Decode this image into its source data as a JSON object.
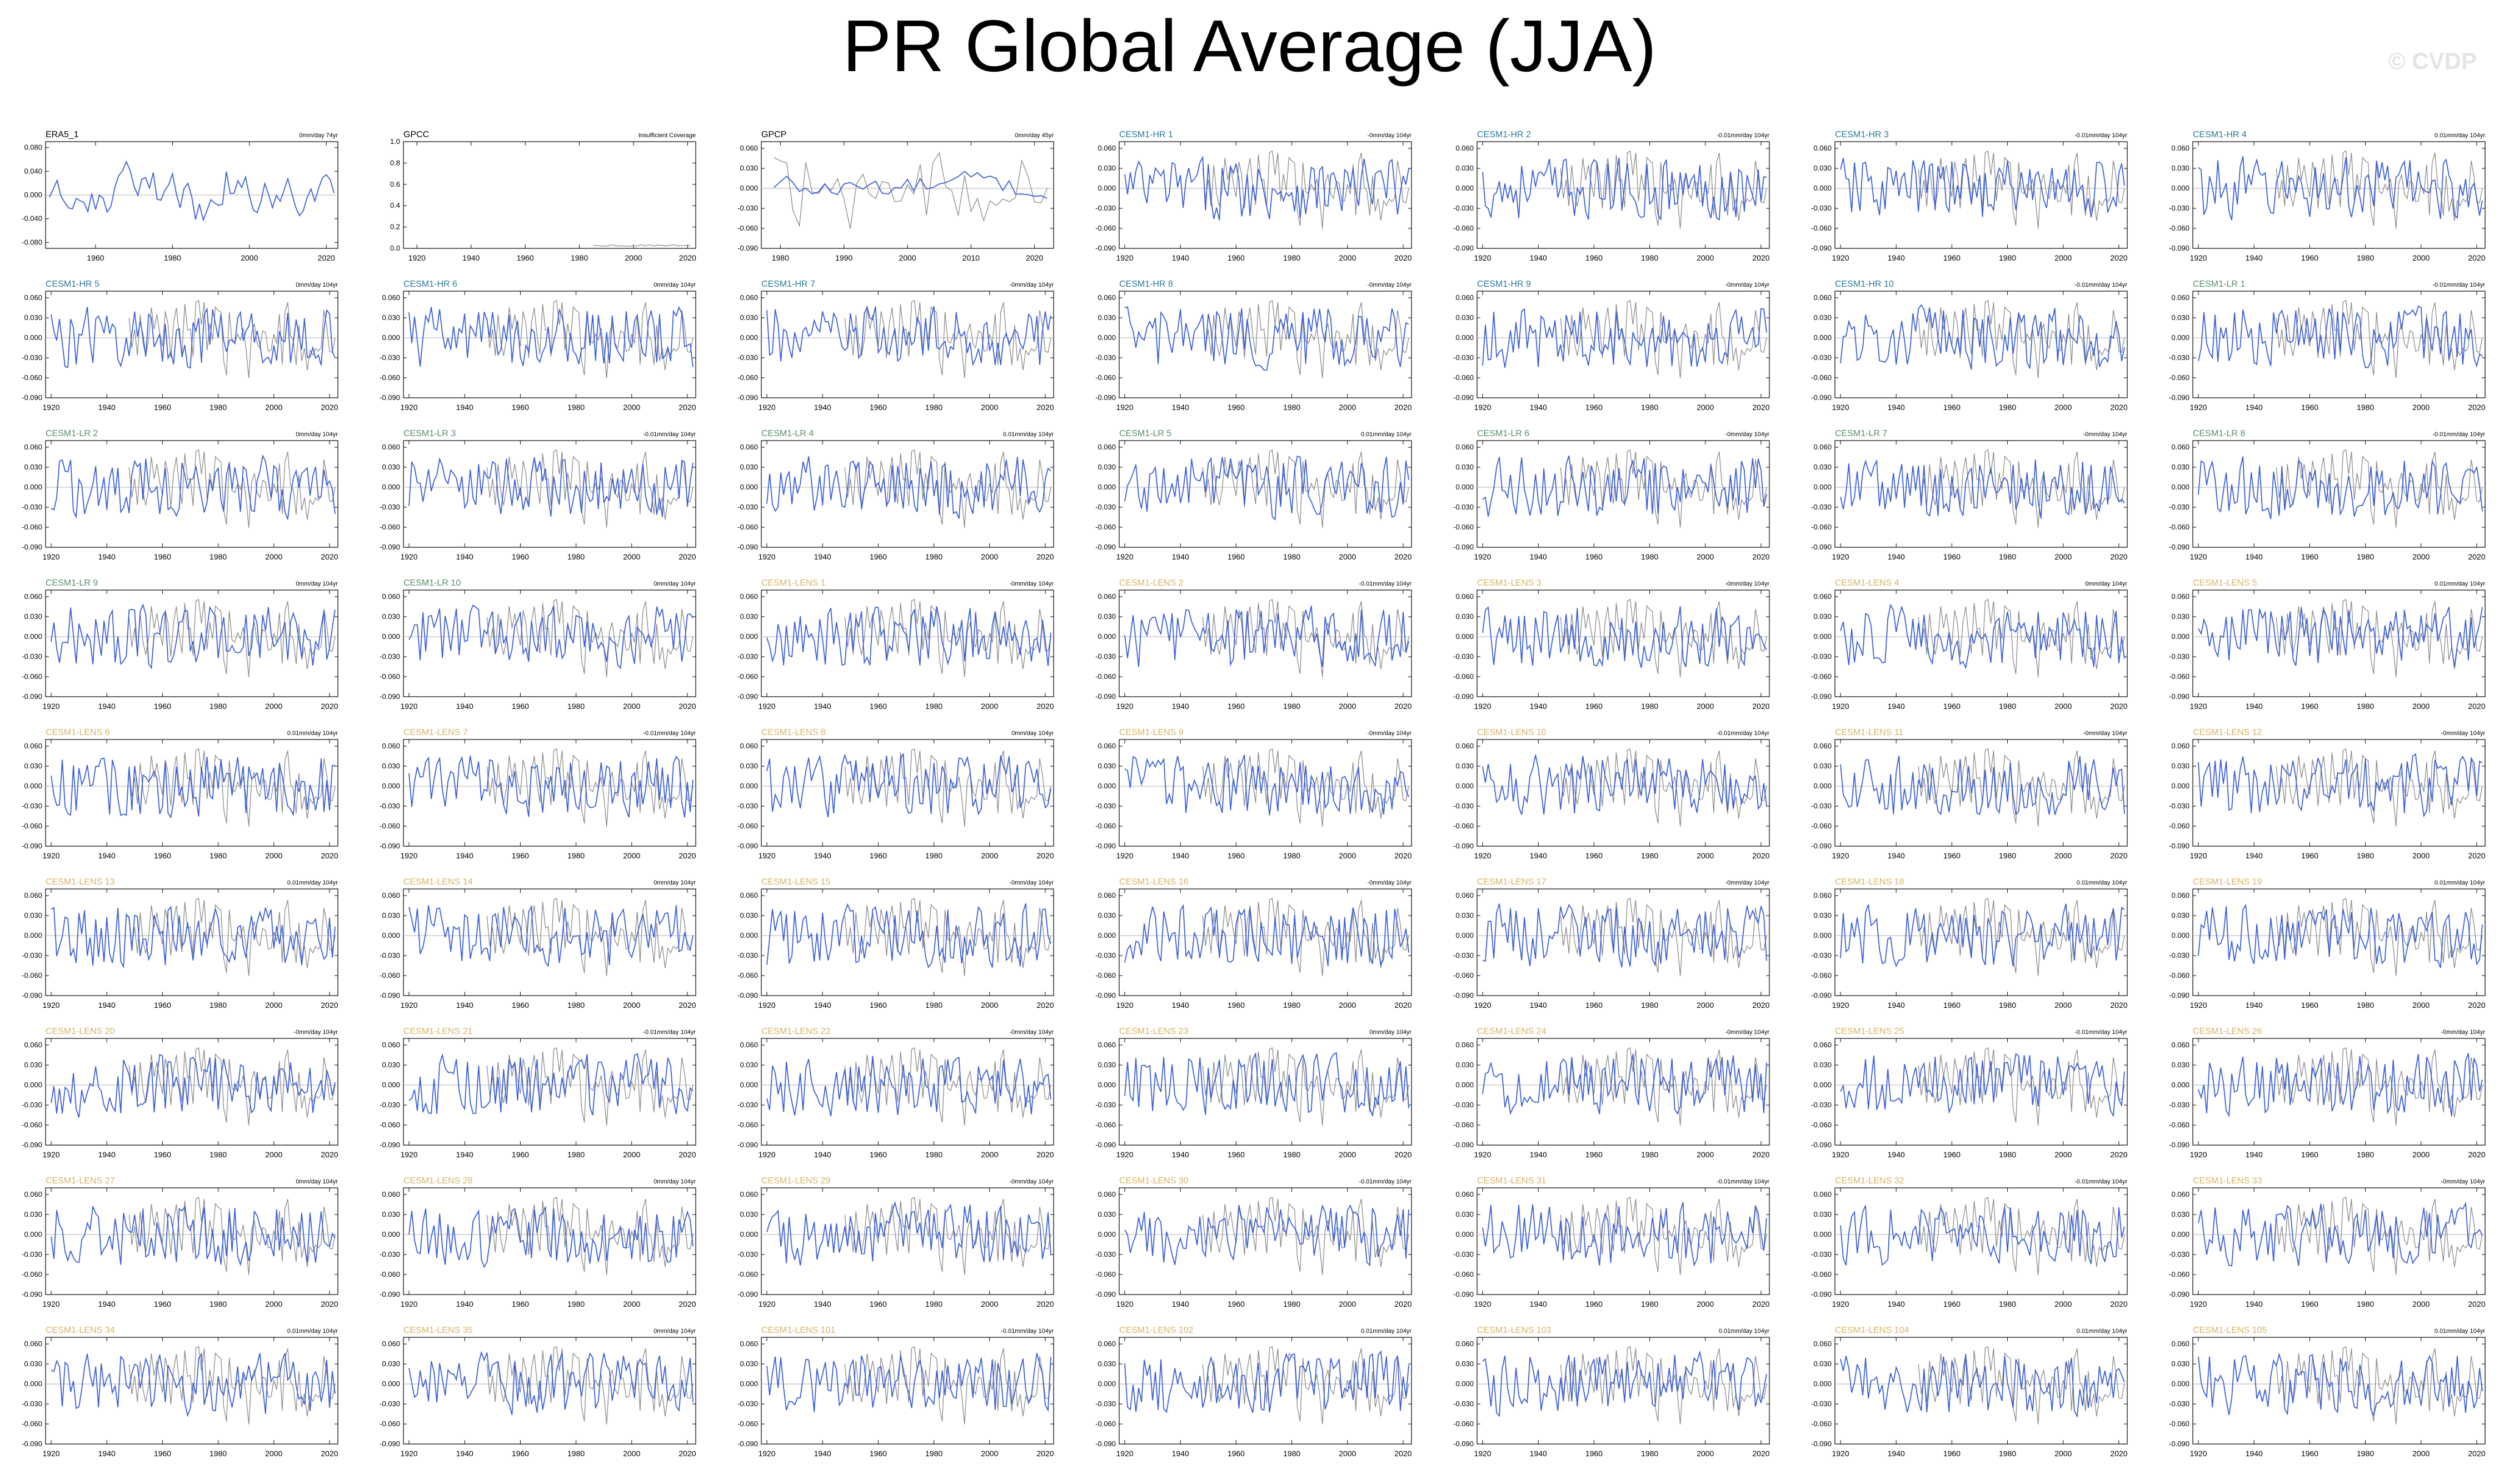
{
  "title": "PR Global Average (JJA)",
  "watermark": "© CVDP",
  "colors": {
    "model_line": "#3a5fd8",
    "obs_line": "#8a8a8a",
    "zero_line": "#b0b0b0",
    "title_obs": "#000000",
    "title_hr": "#2b7a9a",
    "title_lr": "#5a8f6a",
    "title_lens": "#d7b46a"
  },
  "chart_data": [
    {
      "type": "line",
      "title": "ERA5_1",
      "trend": "0mm/day 74yr",
      "group": "obs",
      "xlim": [
        1947,
        2023
      ],
      "ylim": [
        -0.09,
        0.09
      ],
      "xticks": [
        1960,
        1980,
        2000,
        2020
      ],
      "yticks": [
        -0.08,
        -0.04,
        0,
        0.04,
        0.08
      ],
      "ytick_labels": [
        "-0.080",
        "-0.040",
        "0.000",
        "0.040",
        "0.080"
      ]
    },
    {
      "type": "line",
      "title": "GPCC",
      "trend": "Insufficient Coverage",
      "group": "obs",
      "xlim": [
        1915,
        2023
      ],
      "ylim": [
        0,
        1
      ],
      "xticks": [
        1920,
        1940,
        1960,
        1980,
        2000,
        2020
      ],
      "yticks": [
        0,
        0.2,
        0.4,
        0.6,
        0.8,
        1.0
      ],
      "ytick_labels": [
        "0.0",
        "0.2",
        "0.4",
        "0.6",
        "0.8",
        "1.0"
      ]
    },
    {
      "type": "line",
      "title": "GPCP",
      "trend": "0mm/day 45yr",
      "group": "obs",
      "xlim": [
        1977,
        2023
      ],
      "ylim": [
        -0.09,
        0.07
      ],
      "xticks": [
        1980,
        1990,
        2000,
        2010,
        2020
      ],
      "yticks": [
        -0.09,
        -0.06,
        -0.03,
        0,
        0.03,
        0.06
      ],
      "ytick_labels": [
        "-0.090",
        "-0.060",
        "-0.030",
        "0.000",
        "0.030",
        "0.060"
      ]
    },
    {
      "title": "CESM1-HR 1",
      "trend": "-0mm/day 104yr",
      "group": "hr"
    },
    {
      "title": "CESM1-HR 2",
      "trend": "-0.01mm/day 104yr",
      "group": "hr"
    },
    {
      "title": "CESM1-HR 3",
      "trend": "-0.01mm/day 104yr",
      "group": "hr"
    },
    {
      "title": "CESM1-HR 4",
      "trend": "0.01mm/day 104yr",
      "group": "hr"
    },
    {
      "title": "CESM1-HR 5",
      "trend": "0mm/day 104yr",
      "group": "hr"
    },
    {
      "title": "CESM1-HR 6",
      "trend": "0mm/day 104yr",
      "group": "hr"
    },
    {
      "title": "CESM1-HR 7",
      "trend": "-0mm/day 104yr",
      "group": "hr"
    },
    {
      "title": "CESM1-HR 8",
      "trend": "-0mm/day 104yr",
      "group": "hr"
    },
    {
      "title": "CESM1-HR 9",
      "trend": "-0mm/day 104yr",
      "group": "hr"
    },
    {
      "title": "CESM1-HR 10",
      "trend": "-0.01mm/day 104yr",
      "group": "hr"
    },
    {
      "title": "CESM1-LR 1",
      "trend": "-0.01mm/day 104yr",
      "group": "lr"
    },
    {
      "title": "CESM1-LR 2",
      "trend": "0mm/day 104yr",
      "group": "lr"
    },
    {
      "title": "CESM1-LR 3",
      "trend": "-0.01mm/day 104yr",
      "group": "lr"
    },
    {
      "title": "CESM1-LR 4",
      "trend": "0.01mm/day 104yr",
      "group": "lr"
    },
    {
      "title": "CESM1-LR 5",
      "trend": "0.01mm/day 104yr",
      "group": "lr"
    },
    {
      "title": "CESM1-LR 6",
      "trend": "-0mm/day 104yr",
      "group": "lr"
    },
    {
      "title": "CESM1-LR 7",
      "trend": "-0mm/day 104yr",
      "group": "lr"
    },
    {
      "title": "CESM1-LR 8",
      "trend": "-0.01mm/day 104yr",
      "group": "lr"
    },
    {
      "title": "CESM1-LR 9",
      "trend": "0mm/day 104yr",
      "group": "lr"
    },
    {
      "title": "CESM1-LR 10",
      "trend": "0mm/day 104yr",
      "group": "lr"
    },
    {
      "title": "CESM1-LENS 1",
      "trend": "-0mm/day 104yr",
      "group": "lens"
    },
    {
      "title": "CESM1-LENS 2",
      "trend": "-0.01mm/day 104yr",
      "group": "lens"
    },
    {
      "title": "CESM1-LENS 3",
      "trend": "-0mm/day 104yr",
      "group": "lens"
    },
    {
      "title": "CESM1-LENS 4",
      "trend": "0mm/day 104yr",
      "group": "lens"
    },
    {
      "title": "CESM1-LENS 5",
      "trend": "0.01mm/day 104yr",
      "group": "lens"
    },
    {
      "title": "CESM1-LENS 6",
      "trend": "0.01mm/day 104yr",
      "group": "lens"
    },
    {
      "title": "CESM1-LENS 7",
      "trend": "-0.01mm/day 104yr",
      "group": "lens"
    },
    {
      "title": "CESM1-LENS 8",
      "trend": "0mm/day 104yr",
      "group": "lens"
    },
    {
      "title": "CESM1-LENS 9",
      "trend": "-0mm/day 104yr",
      "group": "lens"
    },
    {
      "title": "CESM1-LENS 10",
      "trend": "-0.01mm/day 104yr",
      "group": "lens"
    },
    {
      "title": "CESM1-LENS 11",
      "trend": "-0mm/day 104yr",
      "group": "lens"
    },
    {
      "title": "CESM1-LENS 12",
      "trend": "-0mm/day 104yr",
      "group": "lens"
    },
    {
      "title": "CESM1-LENS 13",
      "trend": "0.01mm/day 104yr",
      "group": "lens"
    },
    {
      "title": "CESM1-LENS 14",
      "trend": "0mm/day 104yr",
      "group": "lens"
    },
    {
      "title": "CESM1-LENS 15",
      "trend": "-0mm/day 104yr",
      "group": "lens"
    },
    {
      "title": "CESM1-LENS 16",
      "trend": "-0mm/day 104yr",
      "group": "lens"
    },
    {
      "title": "CESM1-LENS 17",
      "trend": "-0mm/day 104yr",
      "group": "lens"
    },
    {
      "title": "CESM1-LENS 18",
      "trend": "0.01mm/day 104yr",
      "group": "lens"
    },
    {
      "title": "CESM1-LENS 19",
      "trend": "0.01mm/day 104yr",
      "group": "lens"
    },
    {
      "title": "CESM1-LENS 20",
      "trend": "-0mm/day 104yr",
      "group": "lens"
    },
    {
      "title": "CESM1-LENS 21",
      "trend": "-0.01mm/day 104yr",
      "group": "lens"
    },
    {
      "title": "CESM1-LENS 22",
      "trend": "-0mm/day 104yr",
      "group": "lens"
    },
    {
      "title": "CESM1-LENS 23",
      "trend": "0mm/day 104yr",
      "group": "lens"
    },
    {
      "title": "CESM1-LENS 24",
      "trend": "-0mm/day 104yr",
      "group": "lens"
    },
    {
      "title": "CESM1-LENS 25",
      "trend": "-0.01mm/day 104yr",
      "group": "lens"
    },
    {
      "title": "CESM1-LENS 26",
      "trend": "-0mm/day 104yr",
      "group": "lens"
    },
    {
      "title": "CESM1-LENS 27",
      "trend": "0mm/day 104yr",
      "group": "lens"
    },
    {
      "title": "CESM1-LENS 28",
      "trend": "0mm/day 104yr",
      "group": "lens"
    },
    {
      "title": "CESM1-LENS 29",
      "trend": "-0mm/day 104yr",
      "group": "lens"
    },
    {
      "title": "CESM1-LENS 30",
      "trend": "-0.01mm/day 104yr",
      "group": "lens"
    },
    {
      "title": "CESM1-LENS 31",
      "trend": "-0.01mm/day 104yr",
      "group": "lens"
    },
    {
      "title": "CESM1-LENS 32",
      "trend": "-0.01mm/day 104yr",
      "group": "lens"
    },
    {
      "title": "CESM1-LENS 33",
      "trend": "-0mm/day 104yr",
      "group": "lens"
    },
    {
      "title": "CESM1-LENS 34",
      "trend": "0.01mm/day 104yr",
      "group": "lens"
    },
    {
      "title": "CESM1-LENS 35",
      "trend": "0mm/day 104yr",
      "group": "lens"
    },
    {
      "title": "CESM1-LENS 101",
      "trend": "-0.01mm/day 104yr",
      "group": "lens"
    },
    {
      "title": "CESM1-LENS 102",
      "trend": "0.01mm/day 104yr",
      "group": "lens"
    },
    {
      "title": "CESM1-LENS 103",
      "trend": "0.01mm/day 104yr",
      "group": "lens"
    },
    {
      "title": "CESM1-LENS 104",
      "trend": "0.01mm/day 104yr",
      "group": "lens"
    },
    {
      "title": "CESM1-LENS 105",
      "trend": "0.01mm/day 104yr",
      "group": "lens"
    }
  ],
  "model_defaults": {
    "type": "line",
    "xlim": [
      1918,
      2023
    ],
    "ylim": [
      -0.09,
      0.07
    ],
    "xticks": [
      1920,
      1940,
      1960,
      1980,
      2000,
      2020
    ],
    "yticks": [
      -0.09,
      -0.06,
      -0.03,
      0,
      0.03,
      0.06
    ],
    "ytick_labels": [
      "-0.090",
      "-0.060",
      "-0.030",
      "0.000",
      "0.030",
      "0.060"
    ]
  }
}
